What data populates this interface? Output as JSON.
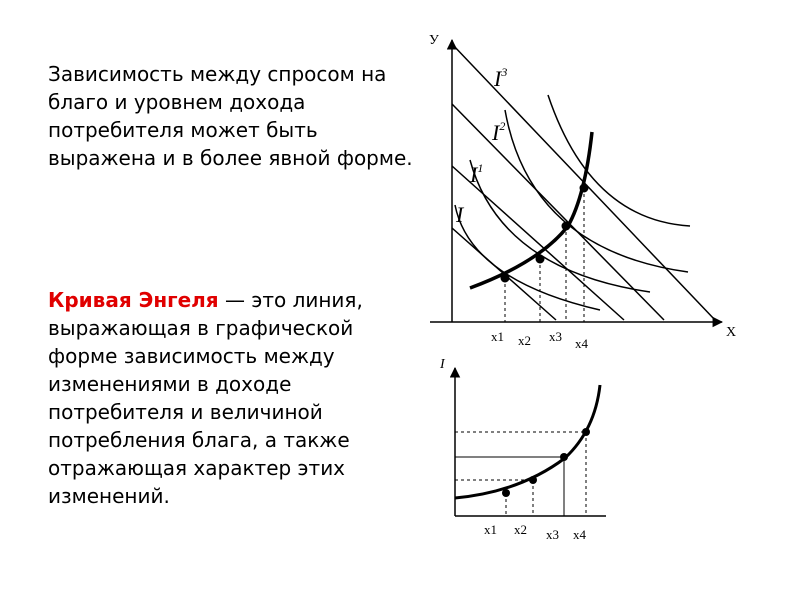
{
  "paragraph1": "Зависимость между спросом на благо и уровнем дохода потребителя может быть выражена и в более явной форме.",
  "paragraph2": {
    "term": "Кривая Энгеля",
    "rest": " — это линия, выражающая в графической форме зависимость между изменениями в доходе потребителя и величиной потребления блага, а также отражающая характер этих изменений."
  },
  "top_graph": {
    "y_label": "У",
    "x_label": "X",
    "curve_labels": [
      {
        "base": "I",
        "sup": ""
      },
      {
        "base": "I",
        "sup": "1"
      },
      {
        "base": "I",
        "sup": "2"
      },
      {
        "base": "I",
        "sup": "3"
      }
    ],
    "x_ticks": [
      "x1",
      "x2",
      "x3",
      "x4"
    ]
  },
  "bottom_graph": {
    "y_label": "I",
    "x_ticks": [
      "x1",
      "x2",
      "x3",
      "x4"
    ]
  }
}
